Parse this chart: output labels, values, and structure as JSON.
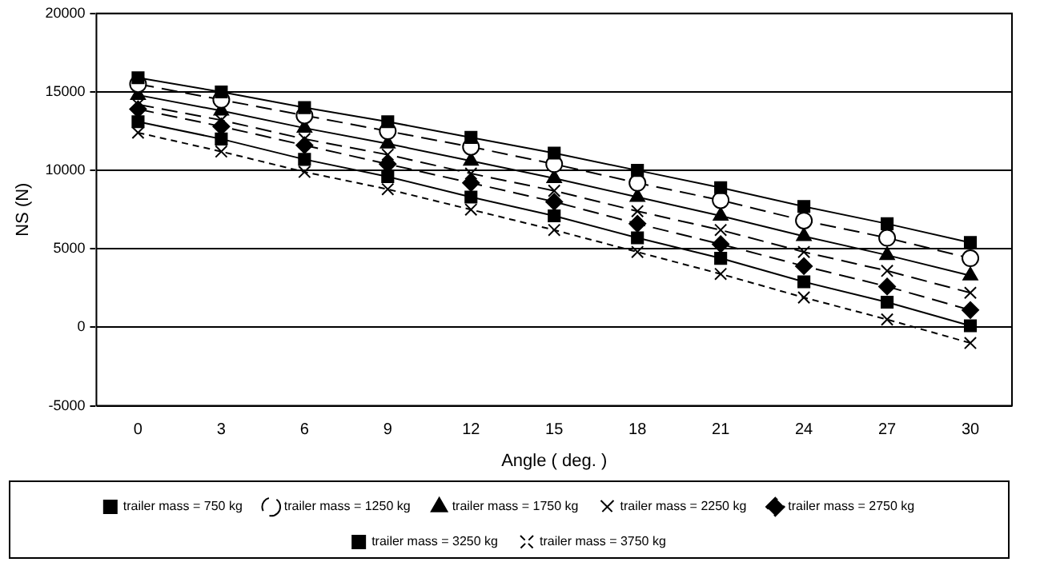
{
  "chart_data": {
    "type": "line",
    "xlabel": "Angle ( deg. )",
    "ylabel": "NS (N)",
    "categories": [
      "0",
      "3",
      "6",
      "9",
      "12",
      "15",
      "18",
      "21",
      "24",
      "27",
      "30"
    ],
    "ylim": [
      -5000,
      20000
    ],
    "yticks": [
      -5000,
      0,
      5000,
      10000,
      15000,
      20000
    ],
    "grid": "y",
    "legend": "bottom",
    "series": [
      {
        "name": "trailer mass = 750 kg",
        "color": "#000000",
        "marker": "square",
        "line_style": "solid",
        "values": [
          15900,
          15000,
          14000,
          13100,
          12100,
          11100,
          10000,
          8900,
          7700,
          6600,
          5400
        ]
      },
      {
        "name": "trailer mass = 1250 kg",
        "color": "#000000",
        "marker": "circle",
        "line_style": "dashed",
        "values": [
          15500,
          14500,
          13500,
          12500,
          11500,
          10400,
          9200,
          8100,
          6800,
          5700,
          4400
        ]
      },
      {
        "name": "trailer mass = 1750 kg",
        "color": "#000000",
        "marker": "triangle",
        "line_style": "solid",
        "values": [
          14800,
          13800,
          12700,
          11700,
          10600,
          9500,
          8300,
          7100,
          5800,
          4600,
          3300
        ]
      },
      {
        "name": "trailer mass = 2250 kg",
        "color": "#000000",
        "marker": "cross",
        "line_style": "dashed",
        "values": [
          14200,
          13200,
          12000,
          11000,
          9800,
          8700,
          7400,
          6200,
          4800,
          3600,
          2200
        ]
      },
      {
        "name": "trailer mass = 2750 kg",
        "color": "#000000",
        "marker": "diamond",
        "line_style": "dashed",
        "values": [
          13900,
          12800,
          11600,
          10400,
          9200,
          8000,
          6600,
          5300,
          3900,
          2600,
          1100
        ]
      },
      {
        "name": "trailer mass = 3250 kg",
        "color": "#000000",
        "marker": "square",
        "line_style": "solid",
        "values": [
          13100,
          12000,
          10700,
          9600,
          8300,
          7100,
          5700,
          4400,
          2900,
          1600,
          100
        ]
      },
      {
        "name": "trailer mass = 3750 kg",
        "color": "#000000",
        "marker": "cross",
        "line_style": "dotted",
        "values": [
          12400,
          11200,
          9900,
          8800,
          7500,
          6200,
          4800,
          3400,
          1900,
          500,
          -1000
        ]
      }
    ]
  }
}
